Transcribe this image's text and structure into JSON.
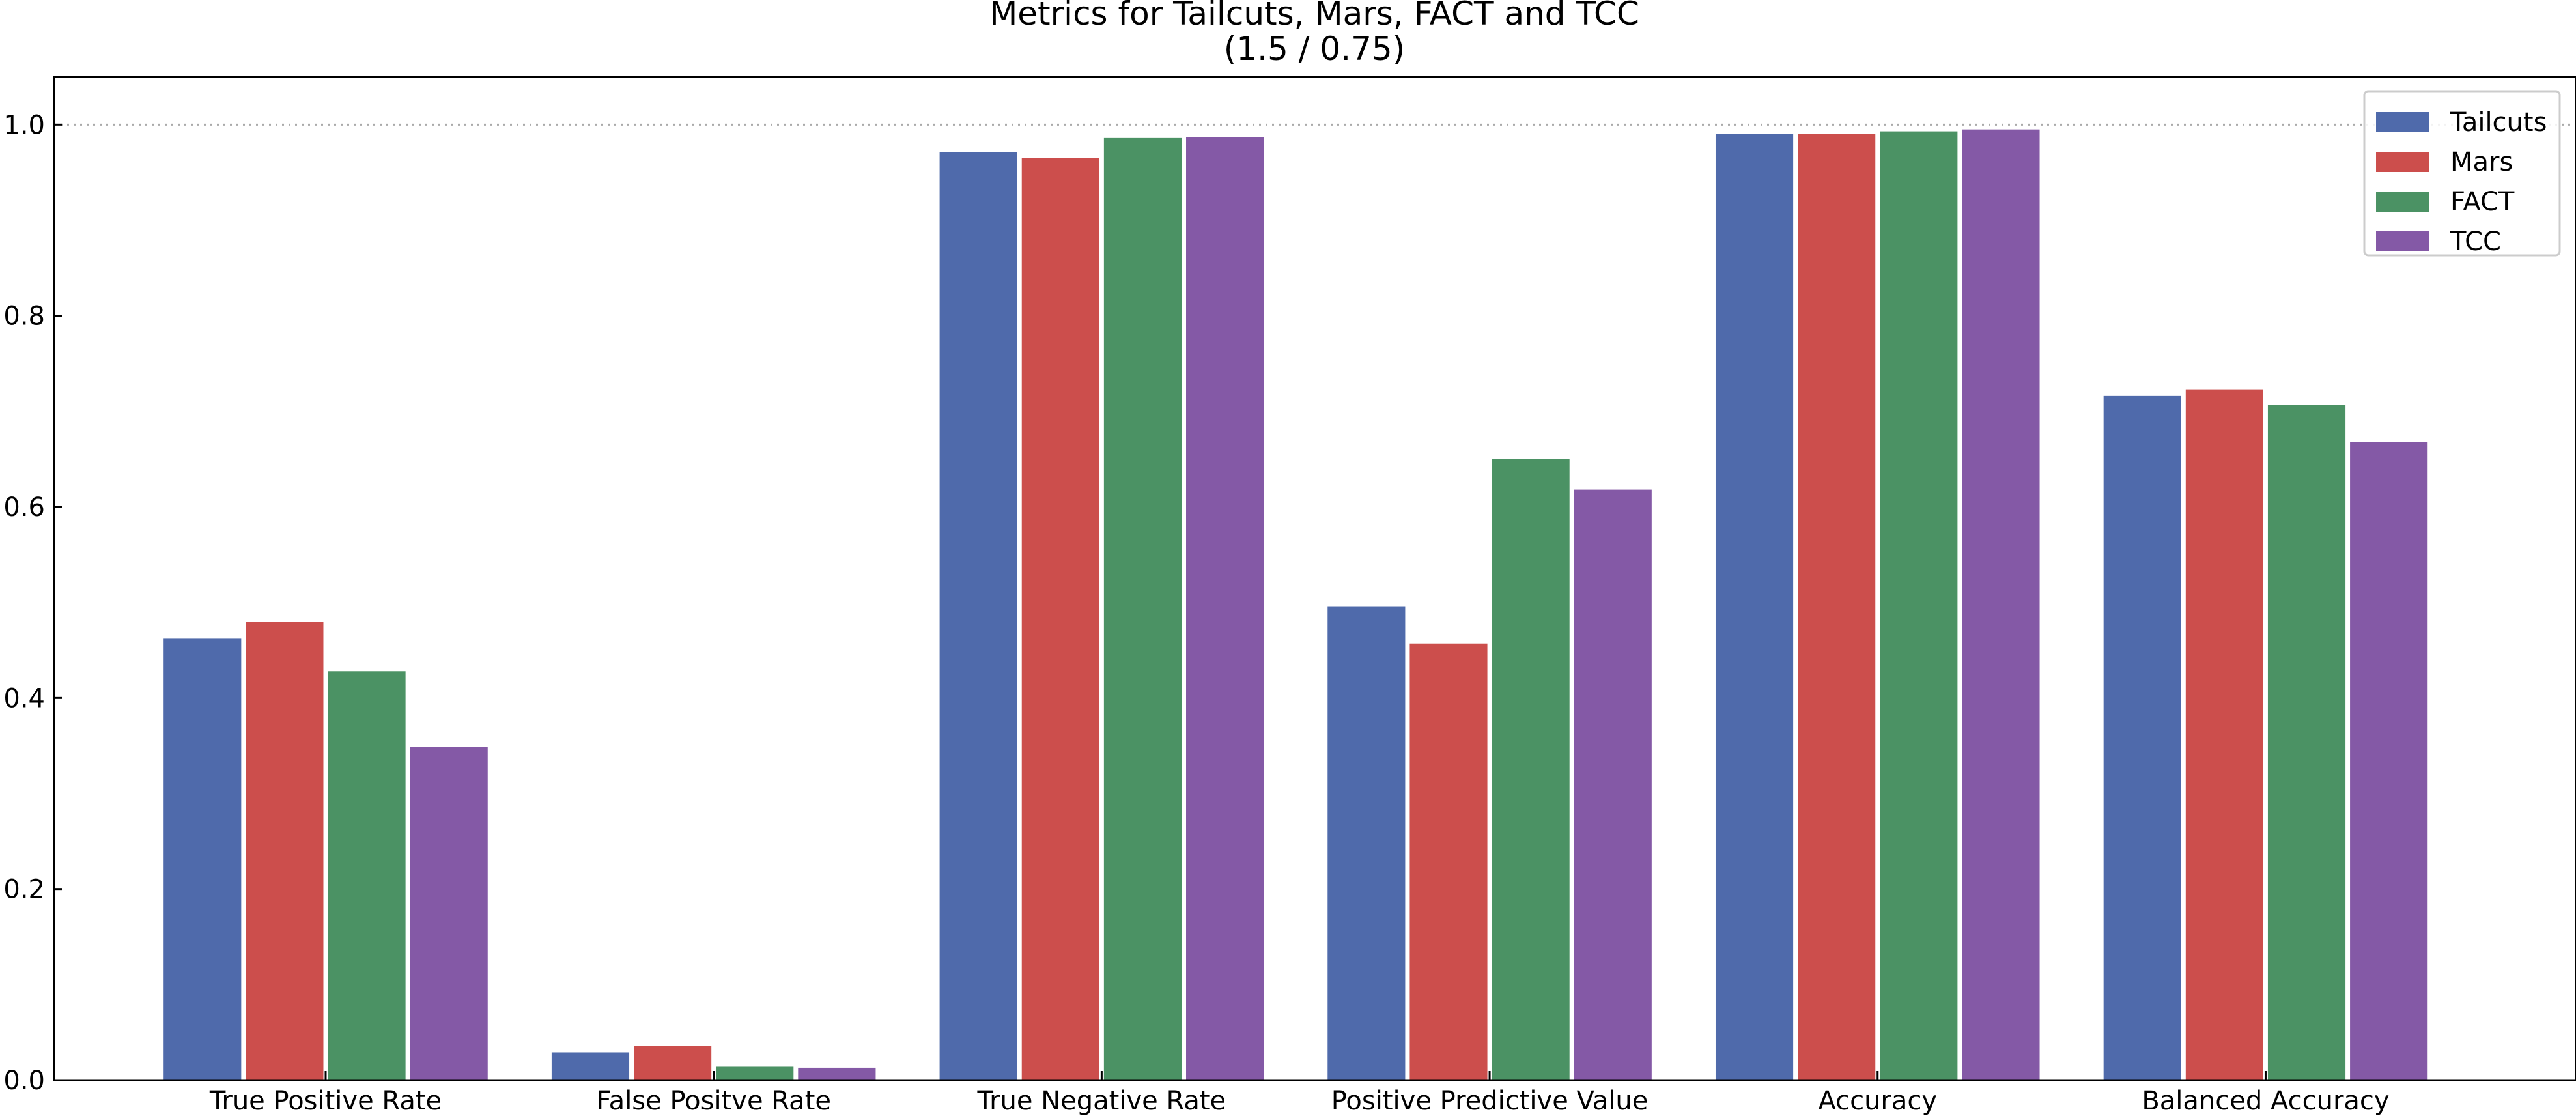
{
  "chart_data": {
    "type": "bar",
    "title": "Metrics for Tailcuts, Mars, FACT and TCC",
    "subtitle": "(1.5 / 0.75)",
    "xlabel": "",
    "ylabel": "",
    "ylim": [
      0,
      1.05
    ],
    "yticks": [
      0.0,
      0.2,
      0.4,
      0.6,
      0.8,
      1.0
    ],
    "ytick_labels": [
      "0.0",
      "0.2",
      "0.4",
      "0.6",
      "0.8",
      "1.0"
    ],
    "reference_line": 1.0,
    "grid": false,
    "legend_position": "top-right",
    "categories": [
      "True Positive Rate",
      "False Positve Rate",
      "True Negative Rate",
      "Positive Predictive Value",
      "Accuracy",
      "Balanced Accuracy"
    ],
    "series": [
      {
        "name": "Tailcuts",
        "color": "#4f6aab",
        "values": [
          0.462,
          0.029,
          0.971,
          0.496,
          0.99,
          0.716
        ]
      },
      {
        "name": "Mars",
        "color": "#cc4e4c",
        "values": [
          0.48,
          0.036,
          0.965,
          0.457,
          0.99,
          0.723
        ]
      },
      {
        "name": "FACT",
        "color": "#4b9264",
        "values": [
          0.428,
          0.014,
          0.986,
          0.65,
          0.993,
          0.707
        ]
      },
      {
        "name": "TCC",
        "color": "#8459a6",
        "values": [
          0.349,
          0.013,
          0.987,
          0.618,
          0.995,
          0.668
        ]
      }
    ]
  }
}
